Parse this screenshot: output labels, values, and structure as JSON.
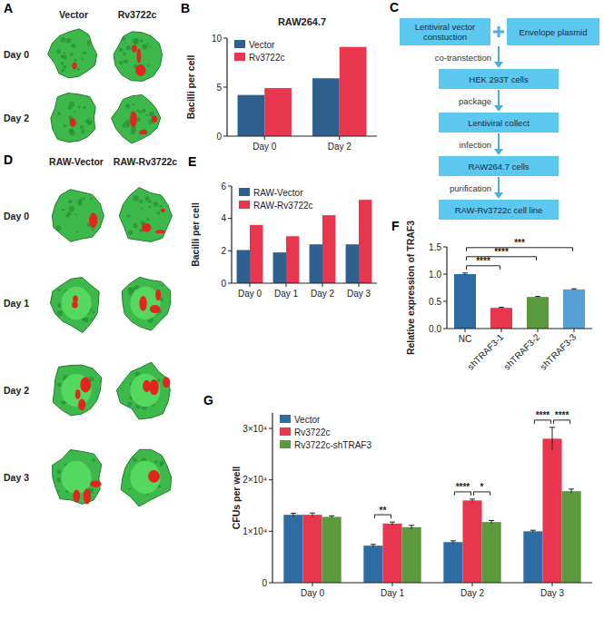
{
  "panels": [
    "A",
    "B",
    "C",
    "D",
    "E",
    "F",
    "G"
  ],
  "chart_data": [
    {
      "type": "bar",
      "title": "RAW264.7",
      "y_label": "Bacilli per cell",
      "categories": [
        "Day 0",
        "Day 2"
      ],
      "series": [
        {
          "name": "Vector",
          "color": "#2d5f8f",
          "values": [
            4.2,
            5.9
          ]
        },
        {
          "name": "Rv3722c",
          "color": "#e8364f",
          "values": [
            4.9,
            9.1
          ]
        }
      ],
      "ylim": [
        0,
        10
      ],
      "yticks": [
        0,
        5,
        10
      ],
      "legend": "top-left"
    },
    {
      "type": "bar",
      "y_label": "Bacilli per cell",
      "categories": [
        "Day 0",
        "Day 1",
        "Day 2",
        "Day 3"
      ],
      "series": [
        {
          "name": "RAW-Vector",
          "color": "#2d5f8f",
          "values": [
            2.05,
            1.9,
            2.4,
            2.4
          ]
        },
        {
          "name": "RAW-Rv3722c",
          "color": "#e8364f",
          "values": [
            3.6,
            2.9,
            4.2,
            5.15
          ]
        }
      ],
      "ylim": [
        0,
        6
      ],
      "yticks": [
        0,
        2,
        4,
        6
      ],
      "legend": "top-left"
    },
    {
      "type": "bar",
      "y_label": "Relative expression of TRAF3",
      "categories": [
        "NC",
        "shTRAF3-1",
        "shTRAF3-2",
        "shTRAF3-3"
      ],
      "values": [
        1.0,
        0.38,
        0.58,
        0.72
      ],
      "errors": [
        0.02,
        0.01,
        0.01,
        0.01
      ],
      "colors": [
        "#2e6da4",
        "#e8364f",
        "#5a9a3c",
        "#56a0d8"
      ],
      "ylim": [
        0,
        1.5
      ],
      "yticks": [
        {
          "value": 0,
          "label": "0.0"
        },
        0.5,
        {
          "value": 1,
          "label": "1.0"
        },
        1.5
      ],
      "comparisons": [
        {
          "from": 0,
          "to": 1,
          "label": "****"
        },
        {
          "from": 0,
          "to": 2,
          "label": "****"
        },
        {
          "from": 0,
          "to": 3,
          "label": "***"
        }
      ]
    },
    {
      "type": "bar",
      "y_label": "CFUs per well",
      "categories": [
        "Day 0",
        "Day 1",
        "Day 2",
        "Day 3"
      ],
      "series": [
        {
          "name": "Vector",
          "color": "#2e6da4",
          "values": [
            13200,
            7200,
            7900,
            10000
          ],
          "errors": [
            300,
            250,
            250,
            200
          ]
        },
        {
          "name": "Rv3722c",
          "color": "#e8364f",
          "values": [
            13200,
            11500,
            16000,
            28000
          ],
          "errors": [
            350,
            300,
            250,
            2200
          ]
        },
        {
          "name": "Rv3722c-shTRAF3",
          "color": "#5a9a3c",
          "values": [
            12800,
            10800,
            11800,
            17800
          ],
          "errors": [
            200,
            350,
            300,
            400
          ]
        }
      ],
      "ylim": [
        0,
        33000
      ],
      "yticks": [
        0,
        {
          "value": 10000,
          "label": "1×10⁴"
        },
        {
          "value": 20000,
          "label": "2×10⁴"
        },
        {
          "value": 30000,
          "label": "3×10⁴"
        }
      ],
      "legend": "top-left",
      "comparisons": [
        {
          "category": 1,
          "from": 0,
          "to": 1,
          "label": "**"
        },
        {
          "category": 2,
          "from": 0,
          "to": 1,
          "label": "****"
        },
        {
          "category": 2,
          "from": 1,
          "to": 2,
          "label": "*"
        },
        {
          "category": 3,
          "from": 0,
          "to": 1,
          "label": "****"
        },
        {
          "category": 3,
          "from": 1,
          "to": 2,
          "label": "****"
        }
      ]
    }
  ],
  "images": [
    {
      "columns": [
        "Vector",
        "Rv3722c"
      ],
      "rows": [
        "Day 0",
        "Day 2"
      ]
    },
    {
      "columns": [
        "RAW-Vector",
        "RAW-Rv3722c"
      ],
      "rows": [
        "Day 0",
        "Day 1",
        "Day 2",
        "Day 3"
      ]
    }
  ],
  "flowchart": {
    "top": [
      "Lentiviral vector constuction",
      "Envelope plasmid"
    ],
    "steps": [
      {
        "edge": "co-transtection",
        "node": "HEK 293T cells"
      },
      {
        "edge": "package",
        "node": "Lentiviral collect"
      },
      {
        "edge": "infection",
        "node": "RAW264.7 cells"
      },
      {
        "edge": "purification",
        "node": "RAW-Rv3722c cell line"
      }
    ]
  }
}
